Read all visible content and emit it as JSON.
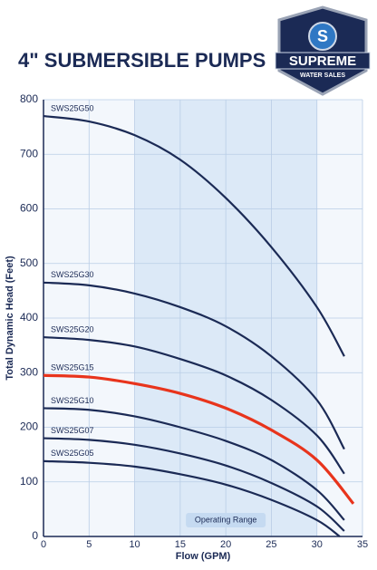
{
  "logo": {
    "name": "SUPREME",
    "tagline": "WATER SALES"
  },
  "chart_data": {
    "type": "line",
    "title": "4\" SUBMERSIBLE PUMPS",
    "x_label": "Flow (GPM)",
    "y_label": "Total Dynamic Head (Feet)",
    "xlim": [
      0,
      35
    ],
    "ylim": [
      0,
      800
    ],
    "xticks": [
      0,
      5,
      10,
      15,
      20,
      25,
      30,
      35
    ],
    "yticks": [
      0,
      100,
      200,
      300,
      400,
      500,
      600,
      700,
      800
    ],
    "grid": true,
    "shaded_range": {
      "x": [
        10,
        30
      ],
      "label": "Operating Range"
    },
    "series": [
      {
        "name": "SWS25G50",
        "color": "#1b2a55",
        "x": [
          0,
          5,
          10,
          15,
          20,
          25,
          30,
          33
        ],
        "values": [
          770,
          760,
          735,
          690,
          620,
          530,
          420,
          330
        ]
      },
      {
        "name": "SWS25G30",
        "color": "#1b2a55",
        "x": [
          0,
          5,
          10,
          15,
          20,
          25,
          30,
          33
        ],
        "values": [
          465,
          460,
          445,
          420,
          385,
          330,
          250,
          160
        ]
      },
      {
        "name": "SWS25G20",
        "color": "#1b2a55",
        "x": [
          0,
          5,
          10,
          15,
          20,
          25,
          30,
          33
        ],
        "values": [
          365,
          360,
          348,
          325,
          295,
          250,
          185,
          115
        ]
      },
      {
        "name": "SWS25G15",
        "color": "#e8341c",
        "x": [
          0,
          5,
          10,
          15,
          20,
          25,
          30,
          34
        ],
        "values": [
          295,
          292,
          280,
          262,
          235,
          195,
          140,
          60
        ]
      },
      {
        "name": "SWS25G10",
        "color": "#1b2a55",
        "x": [
          0,
          5,
          10,
          15,
          20,
          25,
          30,
          33
        ],
        "values": [
          235,
          232,
          220,
          200,
          175,
          140,
          85,
          30
        ]
      },
      {
        "name": "SWS25G07",
        "color": "#1b2a55",
        "x": [
          0,
          5,
          10,
          15,
          20,
          25,
          30,
          33
        ],
        "values": [
          180,
          177,
          168,
          152,
          130,
          98,
          55,
          10
        ]
      },
      {
        "name": "SWS25G05",
        "color": "#1b2a55",
        "x": [
          0,
          5,
          10,
          15,
          20,
          25,
          30,
          32.5
        ],
        "values": [
          138,
          135,
          128,
          114,
          95,
          67,
          30,
          0
        ]
      }
    ]
  }
}
